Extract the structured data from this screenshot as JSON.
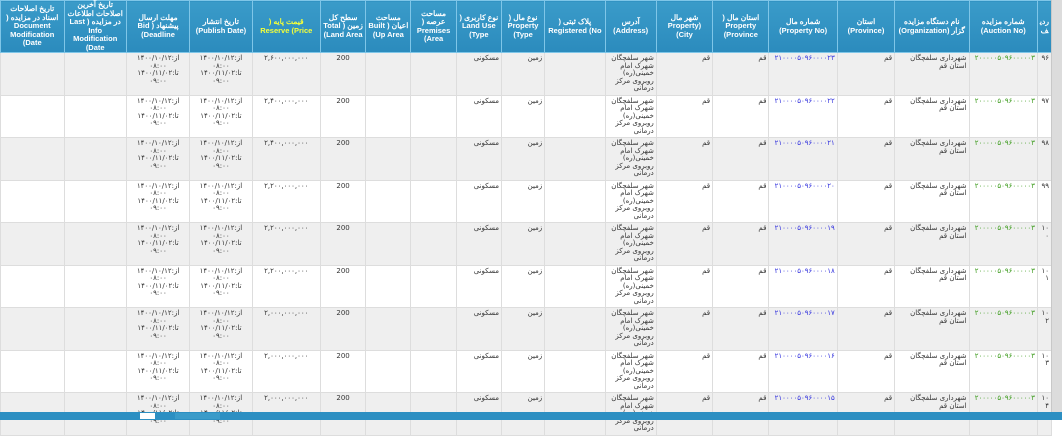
{
  "headers": [
    "ردیف",
    "شماره مزایده (Auction No)",
    "نام دستگاه مزایده گزار (Organization)",
    "استان (Province)",
    "شماره مال (Property No)",
    "استان مال ( Property (Province",
    "شهر مال (Property City)",
    "آدرس (Address)",
    "پلاک ثبتی ( Registered (No",
    "نوع مال ( Property (Type",
    "نوع کاربری ( Land Use (Type",
    "مساحت عرصه ( Premises (Area",
    "مساحت اعیان ( Built (Up Area",
    "سطح کل زمین ( Total (Land Area",
    "قیمت پایه ( Reserve (Price",
    "تاریخ انتشار (Publish Date)",
    "مهلت ارسال پیشنهاد ( Bid (Deadline",
    "تاریخ آخرین اصلاحات اطلاعات در مزایده ( Last Info Modification (Date",
    "تاریخ اصلاحات اسناد در مزایده ( Document Modification (Date"
  ],
  "rows": [
    {
      "no": "۹۶",
      "auction": "۲۰۰۰۰۰۵۰۹۶۰۰۰۰۰۳",
      "org": "شهرداری سلفچگان استان قم",
      "province": "قم",
      "property_no": "۲۱۰۰۰۰۵۰۹۶۰۰۰۰۲۳",
      "prop_province": "قم",
      "city": "قم",
      "address": "شهر سلفچگان شهرک امام خمینی(ره) روبروی مرکز درمانی",
      "registered": "",
      "type": "زمین",
      "land_use": "مسکونی",
      "premises": "",
      "built": "",
      "total": "200",
      "price": "۲,۶۰۰,۰۰۰,۰۰۰",
      "publish": "از:۱۴۰۰/۱۰/۱۲ ۰۸:۰۰ تا:۱۴۰۰/۱۱/۰۲ ۰۹:۰۰",
      "deadline": "از:۱۴۰۰/۱۰/۱۲ ۰۸:۰۰ تا:۱۴۰۰/۱۱/۰۲ ۰۹:۰۰",
      "info_mod": "",
      "doc_mod": ""
    },
    {
      "no": "۹۷",
      "auction": "۲۰۰۰۰۰۵۰۹۶۰۰۰۰۰۳",
      "org": "شهرداری سلفچگان استان قم",
      "province": "قم",
      "property_no": "۲۱۰۰۰۰۵۰۹۶۰۰۰۰۲۲",
      "prop_province": "قم",
      "city": "قم",
      "address": "شهر سلفچگان شهرک امام خمینی(ره) روبروی مرکز درمانی",
      "registered": "",
      "type": "زمین",
      "land_use": "مسکونی",
      "premises": "",
      "built": "",
      "total": "200",
      "price": "۲,۴۰۰,۰۰۰,۰۰۰",
      "publish": "از:۱۴۰۰/۱۰/۱۲ ۰۸:۰۰ تا:۱۴۰۰/۱۱/۰۲ ۰۹:۰۰",
      "deadline": "از:۱۴۰۰/۱۰/۱۲ ۰۸:۰۰ تا:۱۴۰۰/۱۱/۰۲ ۰۹:۰۰",
      "info_mod": "",
      "doc_mod": ""
    },
    {
      "no": "۹۸",
      "auction": "۲۰۰۰۰۰۵۰۹۶۰۰۰۰۰۳",
      "org": "شهرداری سلفچگان استان قم",
      "province": "قم",
      "property_no": "۲۱۰۰۰۰۵۰۹۶۰۰۰۰۲۱",
      "prop_province": "قم",
      "city": "قم",
      "address": "شهر سلفچگان شهرک امام خمینی(ره) روبروی مرکز درمانی",
      "registered": "",
      "type": "زمین",
      "land_use": "مسکونی",
      "premises": "",
      "built": "",
      "total": "200",
      "price": "۲,۴۰۰,۰۰۰,۰۰۰",
      "publish": "از:۱۴۰۰/۱۰/۱۲ ۰۸:۰۰ تا:۱۴۰۰/۱۱/۰۲ ۰۹:۰۰",
      "deadline": "از:۱۴۰۰/۱۰/۱۲ ۰۸:۰۰ تا:۱۴۰۰/۱۱/۰۲ ۰۹:۰۰",
      "info_mod": "",
      "doc_mod": ""
    },
    {
      "no": "۹۹",
      "auction": "۲۰۰۰۰۰۵۰۹۶۰۰۰۰۰۳",
      "org": "شهرداری سلفچگان استان قم",
      "province": "قم",
      "property_no": "۲۱۰۰۰۰۵۰۹۶۰۰۰۰۲۰",
      "prop_province": "قم",
      "city": "قم",
      "address": "شهر سلفچگان شهرک امام خمینی(ره) روبروی مرکز درمانی",
      "registered": "",
      "type": "زمین",
      "land_use": "مسکونی",
      "premises": "",
      "built": "",
      "total": "200",
      "price": "۲,۲۰۰,۰۰۰,۰۰۰",
      "publish": "از:۱۴۰۰/۱۰/۱۲ ۰۸:۰۰ تا:۱۴۰۰/۱۱/۰۲ ۰۹:۰۰",
      "deadline": "از:۱۴۰۰/۱۰/۱۲ ۰۸:۰۰ تا:۱۴۰۰/۱۱/۰۲ ۰۹:۰۰",
      "info_mod": "",
      "doc_mod": ""
    },
    {
      "no": "۱۰۰",
      "auction": "۲۰۰۰۰۰۵۰۹۶۰۰۰۰۰۳",
      "org": "شهرداری سلفچگان استان قم",
      "province": "قم",
      "property_no": "۲۱۰۰۰۰۵۰۹۶۰۰۰۰۱۹",
      "prop_province": "قم",
      "city": "قم",
      "address": "شهر سلفچگان شهرک امام خمینی(ره) روبروی مرکز درمانی",
      "registered": "",
      "type": "زمین",
      "land_use": "مسکونی",
      "premises": "",
      "built": "",
      "total": "200",
      "price": "۲,۲۰۰,۰۰۰,۰۰۰",
      "publish": "از:۱۴۰۰/۱۰/۱۲ ۰۸:۰۰ تا:۱۴۰۰/۱۱/۰۲ ۰۹:۰۰",
      "deadline": "از:۱۴۰۰/۱۰/۱۲ ۰۸:۰۰ تا:۱۴۰۰/۱۱/۰۲ ۰۹:۰۰",
      "info_mod": "",
      "doc_mod": ""
    },
    {
      "no": "۱۰۱",
      "auction": "۲۰۰۰۰۰۵۰۹۶۰۰۰۰۰۳",
      "org": "شهرداری سلفچگان استان قم",
      "province": "قم",
      "property_no": "۲۱۰۰۰۰۵۰۹۶۰۰۰۰۱۸",
      "prop_province": "قم",
      "city": "قم",
      "address": "شهر سلفچگان شهرک امام خمینی(ره) روبروی مرکز درمانی",
      "registered": "",
      "type": "زمین",
      "land_use": "مسکونی",
      "premises": "",
      "built": "",
      "total": "200",
      "price": "۲,۲۰۰,۰۰۰,۰۰۰",
      "publish": "از:۱۴۰۰/۱۰/۱۲ ۰۸:۰۰ تا:۱۴۰۰/۱۱/۰۲ ۰۹:۰۰",
      "deadline": "از:۱۴۰۰/۱۰/۱۲ ۰۸:۰۰ تا:۱۴۰۰/۱۱/۰۲ ۰۹:۰۰",
      "info_mod": "",
      "doc_mod": ""
    },
    {
      "no": "۱۰۲",
      "auction": "۲۰۰۰۰۰۵۰۹۶۰۰۰۰۰۳",
      "org": "شهرداری سلفچگان استان قم",
      "province": "قم",
      "property_no": "۲۱۰۰۰۰۵۰۹۶۰۰۰۰۱۷",
      "prop_province": "قم",
      "city": "قم",
      "address": "شهر سلفچگان شهرک امام خمینی(ره) روبروی مرکز درمانی",
      "registered": "",
      "type": "زمین",
      "land_use": "مسکونی",
      "premises": "",
      "built": "",
      "total": "200",
      "price": "۲,۰۰۰,۰۰۰,۰۰۰",
      "publish": "از:۱۴۰۰/۱۰/۱۲ ۰۸:۰۰ تا:۱۴۰۰/۱۱/۰۲ ۰۹:۰۰",
      "deadline": "از:۱۴۰۰/۱۰/۱۲ ۰۸:۰۰ تا:۱۴۰۰/۱۱/۰۲ ۰۹:۰۰",
      "info_mod": "",
      "doc_mod": ""
    },
    {
      "no": "۱۰۳",
      "auction": "۲۰۰۰۰۰۵۰۹۶۰۰۰۰۰۳",
      "org": "شهرداری سلفچگان استان قم",
      "province": "قم",
      "property_no": "۲۱۰۰۰۰۵۰۹۶۰۰۰۰۱۶",
      "prop_province": "قم",
      "city": "قم",
      "address": "شهر سلفچگان شهرک امام خمینی(ره) روبروی مرکز درمانی",
      "registered": "",
      "type": "زمین",
      "land_use": "مسکونی",
      "premises": "",
      "built": "",
      "total": "200",
      "price": "۲,۰۰۰,۰۰۰,۰۰۰",
      "publish": "از:۱۴۰۰/۱۰/۱۲ ۰۸:۰۰ تا:۱۴۰۰/۱۱/۰۲ ۰۹:۰۰",
      "deadline": "از:۱۴۰۰/۱۰/۱۲ ۰۸:۰۰ تا:۱۴۰۰/۱۱/۰۲ ۰۹:۰۰",
      "info_mod": "",
      "doc_mod": ""
    },
    {
      "no": "۱۰۴",
      "auction": "۲۰۰۰۰۰۵۰۹۶۰۰۰۰۰۳",
      "org": "شهرداری سلفچگان استان قم",
      "province": "قم",
      "property_no": "۲۱۰۰۰۰۵۰۹۶۰۰۰۰۱۵",
      "prop_province": "قم",
      "city": "قم",
      "address": "شهر سلفچگان شهرک امام خمینی(ره) روبروی مرکز درمانی",
      "registered": "",
      "type": "زمین",
      "land_use": "مسکونی",
      "premises": "",
      "built": "",
      "total": "200",
      "price": "۲,۰۰۰,۰۰۰,۰۰۰",
      "publish": "از:۱۴۰۰/۱۰/۱۲ ۰۸:۰۰ تا:۱۴۰۰/۱۱/۰۲ ۰۹:۰۰",
      "deadline": "از:۱۴۰۰/۱۰/۱۲ ۰۸:۰۰ تا:۱۴۰۰/۱۱/۰۲ ۰۹:۰۰",
      "info_mod": "",
      "doc_mod": ""
    }
  ],
  "colors": {
    "header": "#2b8bbd",
    "highlight_header": "#f4ff3a",
    "auction_no": "#3a9a1a",
    "property_no": "#3333dd"
  }
}
